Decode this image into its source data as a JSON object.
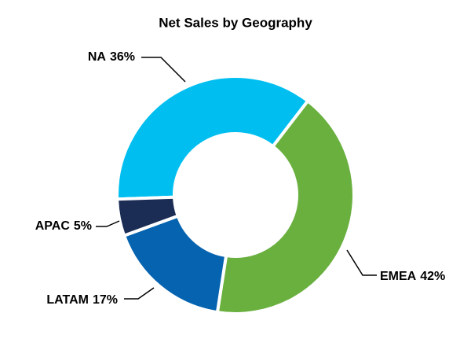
{
  "chart_data": {
    "type": "donut",
    "title": "Net Sales by Geography",
    "categories": [
      "NA",
      "EMEA",
      "LATAM",
      "APAC"
    ],
    "values": [
      36,
      42,
      17,
      5
    ],
    "value_labels": [
      "36%",
      "42%",
      "17%",
      "5%"
    ],
    "colors": [
      "#00bff0",
      "#6ab03f",
      "#0563b0",
      "#1b2c55"
    ]
  }
}
